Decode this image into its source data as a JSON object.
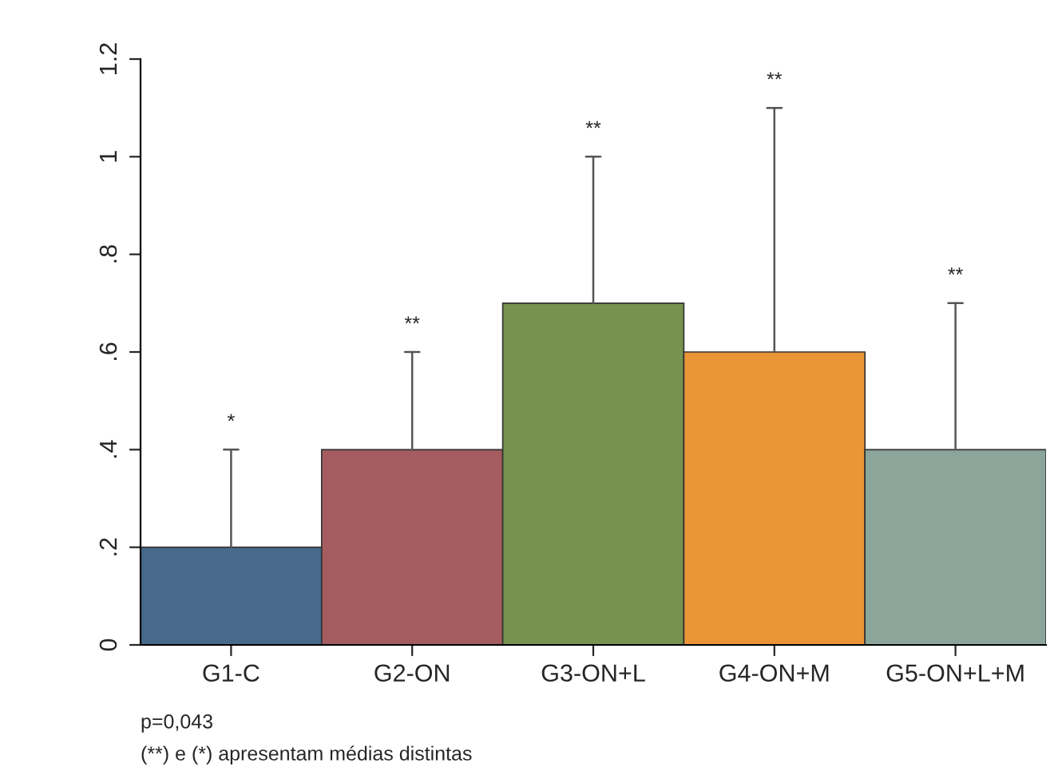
{
  "chart_data": {
    "type": "bar",
    "categories": [
      "G1-C",
      "G2-ON",
      "G3-ON+L",
      "G4-ON+M",
      "G5-ON+L+M"
    ],
    "values": [
      0.2,
      0.4,
      0.7,
      0.6,
      0.4
    ],
    "colors": [
      "#476a8c",
      "#a55c60",
      "#77924f",
      "#ea9636",
      "#8ba59a"
    ],
    "errors": [
      [
        0.2,
        0.4
      ],
      [
        0.4,
        0.6
      ],
      [
        0.7,
        1.0
      ],
      [
        0.6,
        1.1
      ],
      [
        0.4,
        0.7
      ]
    ],
    "ylim": [
      0,
      1.2
    ],
    "yticks": [
      {
        "value": 0,
        "label": "0"
      },
      {
        "value": 0.2,
        "label": ".2"
      },
      {
        "value": 0.4,
        "label": ".4"
      },
      {
        "value": 0.6,
        "label": ".6"
      },
      {
        "value": 0.8,
        "label": ".8"
      },
      {
        "value": 1,
        "label": "1"
      },
      {
        "value": 1.2,
        "label": "1.2"
      }
    ],
    "grid": false,
    "annotations": [
      {
        "text": "*",
        "x": "G1-C",
        "y": 0.4
      },
      {
        "text": "**",
        "x": "G2-ON",
        "y": 0.6
      },
      {
        "text": "**",
        "x": "G3-ON+L",
        "y": 1.0
      },
      {
        "text": "**",
        "x": "G4-ON+M",
        "y": 1.1
      },
      {
        "text": "**",
        "x": "G5-ON+L+M",
        "y": 0.7
      },
      "p=0,043",
      "(**) e (*) apresentam médias distintas"
    ]
  }
}
